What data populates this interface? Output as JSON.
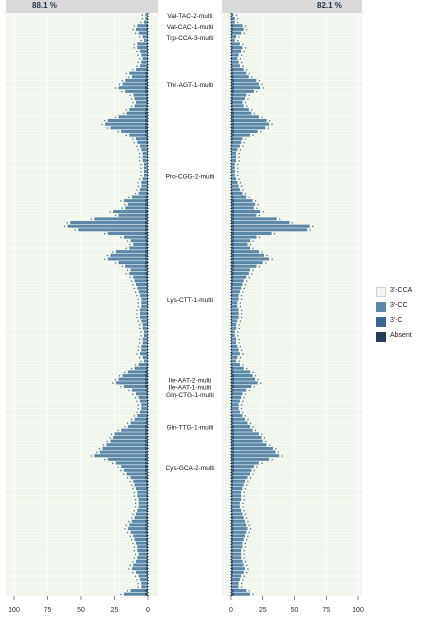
{
  "chart_data": {
    "type": "bar",
    "description_of_layout_omitted": "",
    "panels": [
      {
        "name": "left",
        "header": "88.1 %",
        "direction": "reversed",
        "xlim": [
          100,
          0
        ],
        "ticks": [
          "100",
          "75",
          "50",
          "25",
          "0"
        ]
      },
      {
        "name": "right",
        "header": "82.1 %",
        "direction": "normal",
        "xlim": [
          0,
          100
        ],
        "ticks": [
          "0",
          "25",
          "50",
          "75",
          "100"
        ]
      }
    ],
    "legend": {
      "position": "right",
      "entries": [
        {
          "label": "3'-CCA",
          "color": "#f2f6ee"
        },
        {
          "label": "3'-CC",
          "color": "#5b87a8"
        },
        {
          "label": "3'-C",
          "color": "#3b6592"
        },
        {
          "label": "Absent",
          "color": "#233d5c"
        }
      ]
    },
    "row_labels": [
      {
        "text": "Val-TAC-2-multi",
        "row": 0
      },
      {
        "text": "Val-CAC-1-multi",
        "row": 3
      },
      {
        "text": "Trp-CCA-3-multi",
        "row": 6
      },
      {
        "text": "Thr-AGT-1-multi",
        "row": 19
      },
      {
        "text": "Pro-CGG-2-multi",
        "row": 44
      },
      {
        "text": "Lys-CTT-1-multi",
        "row": 78
      },
      {
        "text": "Ile-AAT-2-multi",
        "row": 100
      },
      {
        "text": "Ile-AAT-1-multi",
        "row": 102
      },
      {
        "text": "Gln-CTG-1-multi",
        "row": 104
      },
      {
        "text": "Gln-TTG-1-multi",
        "row": 113
      },
      {
        "text": "Cys-GCA-2-multi",
        "row": 124
      }
    ],
    "n_rows": 160,
    "series": [
      {
        "name": "left",
        "values": [
          2,
          2,
          3,
          8,
          9,
          7,
          4,
          3,
          8,
          8,
          6,
          5,
          4,
          5,
          6,
          9,
          14,
          12,
          17,
          19,
          22,
          17,
          11,
          10,
          9,
          10,
          14,
          16,
          22,
          30,
          32,
          28,
          20,
          14,
          9,
          8,
          6,
          5,
          4,
          4,
          4,
          3,
          3,
          3,
          3,
          4,
          5,
          5,
          6,
          7,
          12,
          18,
          15,
          17,
          26,
          22,
          40,
          58,
          60,
          52,
          30,
          18,
          13,
          11,
          14,
          24,
          28,
          30,
          22,
          17,
          13,
          14,
          11,
          10,
          9,
          8,
          7,
          6,
          5,
          5,
          5,
          6,
          6,
          6,
          5,
          4,
          4,
          3,
          3,
          4,
          4,
          5,
          5,
          6,
          4,
          3,
          7,
          10,
          15,
          19,
          22,
          24,
          18,
          12,
          9,
          7,
          6,
          5,
          5,
          6,
          8,
          10,
          13,
          15,
          20,
          25,
          26,
          28,
          31,
          34,
          36,
          40,
          30,
          24,
          20,
          18,
          16,
          13,
          11,
          10,
          9,
          8,
          8,
          7,
          7,
          7,
          8,
          9,
          10,
          12,
          14,
          15,
          13,
          11,
          10,
          9,
          8,
          8,
          7,
          8,
          9,
          11,
          12,
          9,
          7,
          6,
          5,
          5,
          13,
          18
        ]
      },
      {
        "name": "right",
        "values": [
          2,
          3,
          3,
          9,
          10,
          8,
          4,
          3,
          7,
          9,
          8,
          6,
          5,
          6,
          7,
          10,
          12,
          14,
          20,
          22,
          23,
          18,
          12,
          11,
          9,
          10,
          14,
          16,
          22,
          28,
          30,
          27,
          21,
          15,
          9,
          8,
          7,
          5,
          4,
          4,
          4,
          3,
          3,
          3,
          3,
          4,
          5,
          6,
          7,
          9,
          12,
          17,
          19,
          18,
          23,
          20,
          36,
          46,
          62,
          60,
          32,
          20,
          15,
          13,
          15,
          22,
          26,
          30,
          25,
          20,
          15,
          14,
          12,
          10,
          9,
          8,
          7,
          6,
          6,
          5,
          5,
          6,
          6,
          6,
          5,
          4,
          4,
          3,
          3,
          4,
          4,
          5,
          6,
          7,
          5,
          4,
          7,
          10,
          15,
          17,
          19,
          21,
          16,
          12,
          9,
          8,
          7,
          6,
          6,
          7,
          9,
          11,
          13,
          15,
          17,
          22,
          24,
          25,
          28,
          33,
          35,
          38,
          30,
          22,
          18,
          16,
          15,
          13,
          11,
          10,
          9,
          8,
          8,
          8,
          7,
          7,
          8,
          9,
          10,
          11,
          12,
          13,
          12,
          11,
          10,
          9,
          9,
          8,
          8,
          8,
          9,
          10,
          11,
          10,
          8,
          7,
          6,
          6,
          12,
          15
        ]
      }
    ]
  }
}
